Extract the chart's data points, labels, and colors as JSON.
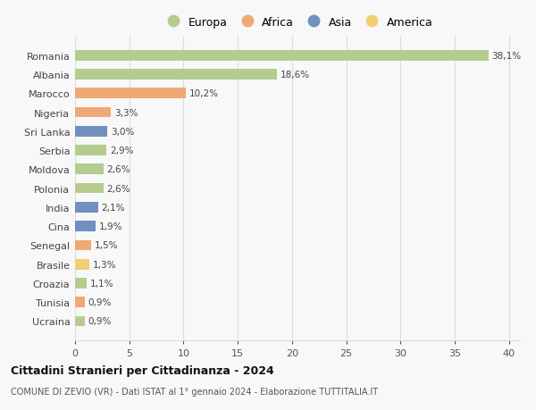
{
  "countries": [
    "Romania",
    "Albania",
    "Marocco",
    "Nigeria",
    "Sri Lanka",
    "Serbia",
    "Moldova",
    "Polonia",
    "India",
    "Cina",
    "Senegal",
    "Brasile",
    "Croazia",
    "Tunisia",
    "Ucraina"
  ],
  "values": [
    38.1,
    18.6,
    10.2,
    3.3,
    3.0,
    2.9,
    2.6,
    2.6,
    2.1,
    1.9,
    1.5,
    1.3,
    1.1,
    0.9,
    0.9
  ],
  "labels": [
    "38,1%",
    "18,6%",
    "10,2%",
    "3,3%",
    "3,0%",
    "2,9%",
    "2,6%",
    "2,6%",
    "2,1%",
    "1,9%",
    "1,5%",
    "1,3%",
    "1,1%",
    "0,9%",
    "0,9%"
  ],
  "continents": [
    "Europa",
    "Europa",
    "Africa",
    "Africa",
    "Asia",
    "Europa",
    "Europa",
    "Europa",
    "Asia",
    "Asia",
    "Africa",
    "America",
    "Europa",
    "Africa",
    "Europa"
  ],
  "colors": {
    "Europa": "#b5cc8e",
    "Africa": "#f0a875",
    "Asia": "#7090c0",
    "America": "#f0d070"
  },
  "xlim": [
    0,
    41
  ],
  "xticks": [
    0,
    5,
    10,
    15,
    20,
    25,
    30,
    35,
    40
  ],
  "title": "Cittadini Stranieri per Cittadinanza - 2024",
  "subtitle": "COMUNE DI ZEVIO (VR) - Dati ISTAT al 1° gennaio 2024 - Elaborazione TUTTITALIA.IT",
  "background_color": "#f8f8f8",
  "grid_color": "#dddddd"
}
